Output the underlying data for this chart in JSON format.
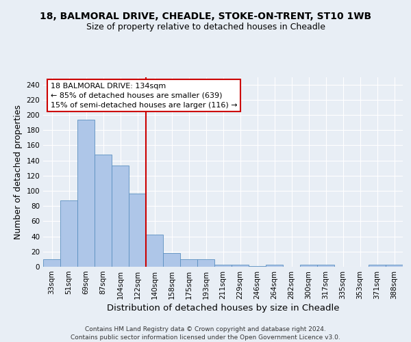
{
  "title_line1": "18, BALMORAL DRIVE, CHEADLE, STOKE-ON-TRENT, ST10 1WB",
  "title_line2": "Size of property relative to detached houses in Cheadle",
  "xlabel": "Distribution of detached houses by size in Cheadle",
  "ylabel": "Number of detached properties",
  "categories": [
    "33sqm",
    "51sqm",
    "69sqm",
    "87sqm",
    "104sqm",
    "122sqm",
    "140sqm",
    "158sqm",
    "175sqm",
    "193sqm",
    "211sqm",
    "229sqm",
    "246sqm",
    "264sqm",
    "282sqm",
    "300sqm",
    "317sqm",
    "335sqm",
    "353sqm",
    "371sqm",
    "388sqm"
  ],
  "values": [
    10,
    87,
    194,
    148,
    133,
    96,
    42,
    18,
    10,
    10,
    3,
    3,
    1,
    3,
    0,
    3,
    3,
    0,
    0,
    3,
    3
  ],
  "bar_color": "#aec6e8",
  "bar_edge_color": "#5a8fc0",
  "vline_color": "#cc0000",
  "annotation_title": "18 BALMORAL DRIVE: 134sqm",
  "annotation_line2": "← 85% of detached houses are smaller (639)",
  "annotation_line3": "15% of semi-detached houses are larger (116) →",
  "annotation_box_color": "#ffffff",
  "annotation_box_edge_color": "#cc0000",
  "footer_line1": "Contains HM Land Registry data © Crown copyright and database right 2024.",
  "footer_line2": "Contains public sector information licensed under the Open Government Licence v3.0.",
  "ylim": [
    0,
    250
  ],
  "yticks": [
    0,
    20,
    40,
    60,
    80,
    100,
    120,
    140,
    160,
    180,
    200,
    220,
    240
  ],
  "background_color": "#e8eef5",
  "grid_color": "#ffffff",
  "title_fontsize": 10,
  "subtitle_fontsize": 9,
  "axis_label_fontsize": 9,
  "tick_fontsize": 7.5,
  "annotation_fontsize": 8,
  "footer_fontsize": 6.5
}
